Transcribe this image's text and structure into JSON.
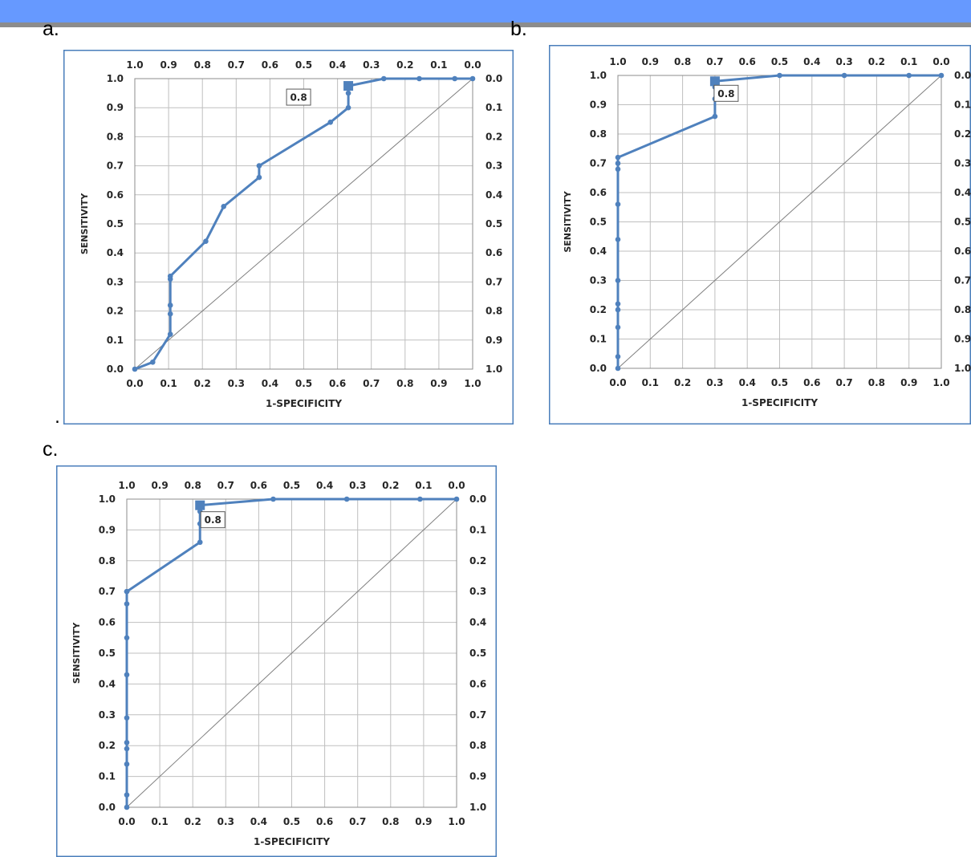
{
  "figure": {
    "panel_labels": [
      "a.",
      "b.",
      "c."
    ],
    "stray_mark": "."
  },
  "colors": {
    "top_band": "#6699ff",
    "top_rule": "#8c8c8c",
    "series": "#4f81bd",
    "frame": "#4a7ebb",
    "grid": "#bfbfbf",
    "diagonal": "#7f7f7f",
    "text": "#262626"
  },
  "chart_data": [
    {
      "type": "line",
      "panel": "a.",
      "xlabel": "1-SPECIFICITY",
      "ylabel": "SENSITIVITY",
      "xlim": [
        0,
        1
      ],
      "ylim": [
        0,
        1
      ],
      "x_ticks": [
        "0.0",
        "0.1",
        "0.2",
        "0.3",
        "0.4",
        "0.5",
        "0.6",
        "0.7",
        "0.8",
        "0.9",
        "1.0"
      ],
      "y_ticks": [
        "0.0",
        "0.1",
        "0.2",
        "0.3",
        "0.4",
        "0.5",
        "0.6",
        "0.7",
        "0.8",
        "0.9",
        "1.0"
      ],
      "top_ticks": [
        "1.0",
        "0.9",
        "0.8",
        "0.7",
        "0.6",
        "0.5",
        "0.4",
        "0.3",
        "0.2",
        "0.1",
        "0.0"
      ],
      "right_ticks": [
        "0.0",
        "0.1",
        "0.2",
        "0.3",
        "0.4",
        "0.5",
        "0.6",
        "0.7",
        "0.8",
        "0.9",
        "1.0"
      ],
      "grid": true,
      "reference_line": true,
      "series": [
        {
          "x": [
            0.0,
            0.053,
            0.105,
            0.105,
            0.105,
            0.105,
            0.105,
            0.21,
            0.263,
            0.368,
            0.368,
            0.579,
            0.632,
            0.632,
            0.632,
            0.737,
            0.842,
            0.947,
            1.0
          ],
          "y": [
            0.0,
            0.024,
            0.12,
            0.19,
            0.22,
            0.31,
            0.32,
            0.44,
            0.56,
            0.66,
            0.7,
            0.85,
            0.9,
            0.95,
            0.975,
            1.0,
            1.0,
            1.0,
            1.0
          ]
        }
      ],
      "highlight": {
        "x": 0.632,
        "y": 0.975,
        "label": "0.8"
      }
    },
    {
      "type": "line",
      "panel": "b.",
      "xlabel": "1-SPECIFICITY",
      "ylabel": "SENSITIVITY",
      "xlim": [
        0,
        1
      ],
      "ylim": [
        0,
        1
      ],
      "x_ticks": [
        "0.0",
        "0.1",
        "0.2",
        "0.3",
        "0.4",
        "0.5",
        "0.6",
        "0.7",
        "0.8",
        "0.9",
        "1.0"
      ],
      "y_ticks": [
        "0.0",
        "0.1",
        "0.2",
        "0.3",
        "0.4",
        "0.5",
        "0.6",
        "0.7",
        "0.8",
        "0.9",
        "1.0"
      ],
      "top_ticks": [
        "1.0",
        "0.9",
        "0.8",
        "0.7",
        "0.6",
        "0.5",
        "0.4",
        "0.3",
        "0.2",
        "0.1",
        "0.0"
      ],
      "right_ticks": [
        "0.0",
        "0.1",
        "0.2",
        "0.3",
        "0.4",
        "0.5",
        "0.6",
        "0.7",
        "0.8",
        "0.9",
        "1.0"
      ],
      "grid": true,
      "reference_line": true,
      "series": [
        {
          "x": [
            0.0,
            0.0,
            0.0,
            0.0,
            0.0,
            0.0,
            0.0,
            0.0,
            0.0,
            0.0,
            0.0,
            0.3,
            0.3,
            0.3,
            0.3,
            0.5,
            0.7,
            0.9,
            1.0
          ],
          "y": [
            0.0,
            0.04,
            0.14,
            0.2,
            0.22,
            0.3,
            0.44,
            0.56,
            0.68,
            0.7,
            0.72,
            0.86,
            0.92,
            0.96,
            0.98,
            1.0,
            1.0,
            1.0,
            1.0
          ]
        }
      ],
      "highlight": {
        "x": 0.3,
        "y": 0.98,
        "label": "0.8"
      }
    },
    {
      "type": "line",
      "panel": "c.",
      "xlabel": "1-SPECIFICITY",
      "ylabel": "SENSITIVITY",
      "xlim": [
        0,
        1
      ],
      "ylim": [
        0,
        1
      ],
      "x_ticks": [
        "0.0",
        "0.1",
        "0.2",
        "0.3",
        "0.4",
        "0.5",
        "0.6",
        "0.7",
        "0.8",
        "0.9",
        "1.0"
      ],
      "y_ticks": [
        "0.0",
        "0.1",
        "0.2",
        "0.3",
        "0.4",
        "0.5",
        "0.6",
        "0.7",
        "0.8",
        "0.9",
        "1.0"
      ],
      "top_ticks": [
        "1.0",
        "0.9",
        "0.8",
        "0.7",
        "0.6",
        "0.5",
        "0.4",
        "0.3",
        "0.2",
        "0.1",
        "0.0"
      ],
      "right_ticks": [
        "0.0",
        "0.1",
        "0.2",
        "0.3",
        "0.4",
        "0.5",
        "0.6",
        "0.7",
        "0.8",
        "0.9",
        "1.0"
      ],
      "grid": true,
      "reference_line": true,
      "series": [
        {
          "x": [
            0.0,
            0.0,
            0.0,
            0.0,
            0.0,
            0.0,
            0.0,
            0.0,
            0.0,
            0.0,
            0.0,
            0.222,
            0.222,
            0.222,
            0.222,
            0.444,
            0.667,
            0.889,
            1.0
          ],
          "y": [
            0.0,
            0.04,
            0.14,
            0.19,
            0.21,
            0.29,
            0.43,
            0.55,
            0.66,
            0.7,
            0.7,
            0.86,
            0.92,
            0.96,
            0.98,
            1.0,
            1.0,
            1.0,
            1.0
          ]
        }
      ],
      "highlight": {
        "x": 0.222,
        "y": 0.98,
        "label": "0.8"
      }
    }
  ]
}
